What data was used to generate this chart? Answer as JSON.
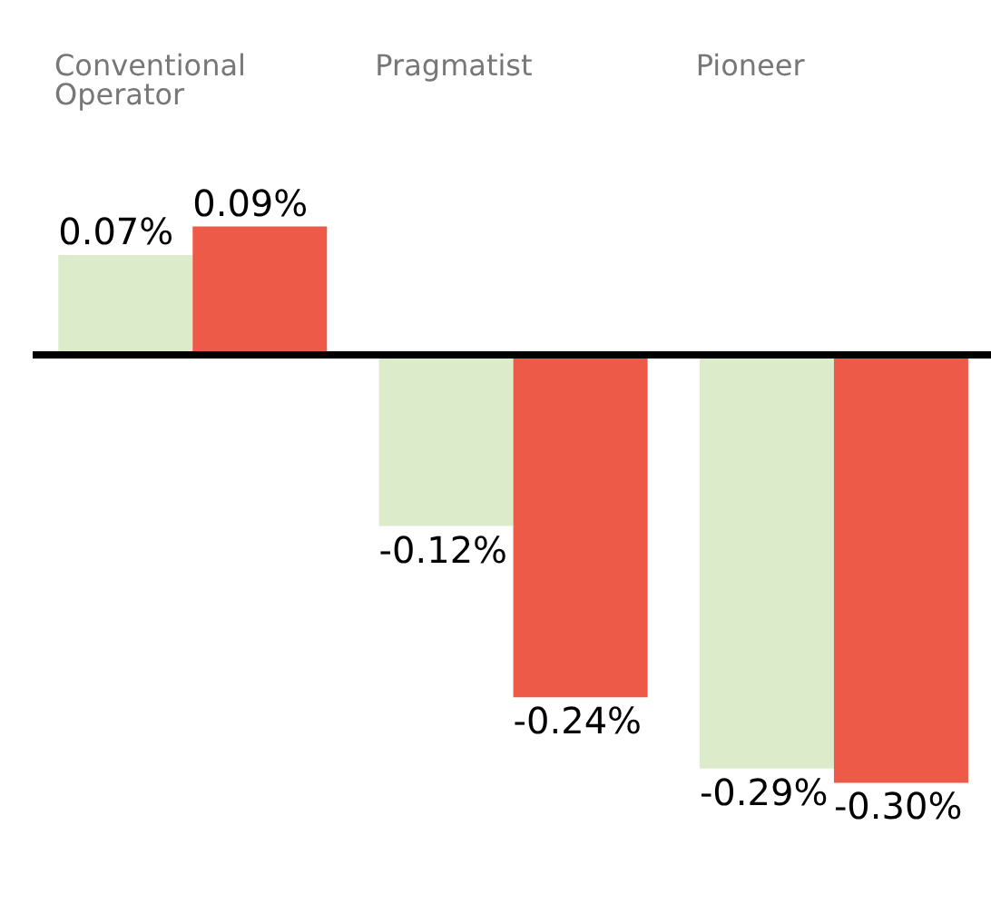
{
  "chart_data": {
    "type": "bar",
    "categories": [
      "Conventional Operator",
      "Pragmatist",
      "Pioneer"
    ],
    "series": [
      {
        "color": "#dcebc9",
        "values": [
          0.07,
          -0.12,
          -0.29
        ],
        "value_labels": [
          "0.07%",
          "-0.12%",
          "-0.29%"
        ]
      },
      {
        "color": "#ee5a48",
        "values": [
          0.09,
          -0.24,
          -0.3
        ],
        "value_labels": [
          "0.09%",
          "-0.24%",
          "-0.30%"
        ]
      }
    ],
    "legend": false,
    "grid": false
  }
}
